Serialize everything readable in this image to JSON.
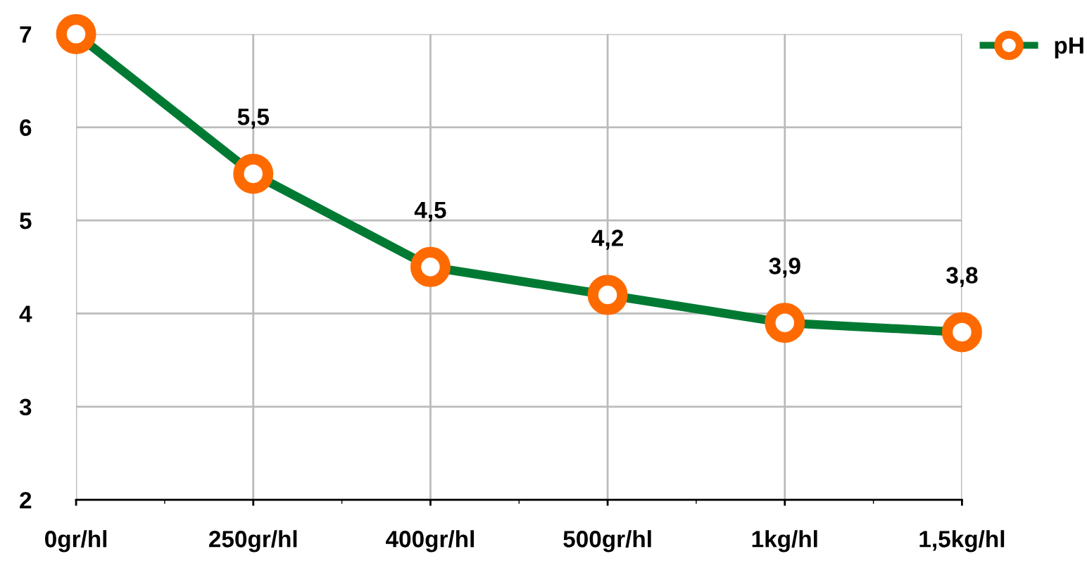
{
  "chart_data": {
    "type": "line",
    "categories": [
      "0gr/hl",
      "250gr/hl",
      "400gr/hl",
      "500gr/hl",
      "1kg/hl",
      "1,5kg/hl"
    ],
    "series": [
      {
        "name": "pH",
        "color": "#007a33",
        "colors": [
          "#ff6a00",
          "#ff6a00",
          "#ff6a00",
          "#ff6a00",
          "#ff6a00",
          "#ff6a00"
        ],
        "values": [
          7,
          5.5,
          4.5,
          4.2,
          3.9,
          3.8
        ],
        "value_labels": [
          null,
          "5,5",
          "4,5",
          "4,2",
          "3,9",
          "3,8"
        ]
      }
    ],
    "ylim": [
      2,
      7
    ],
    "yticks": [
      2,
      3,
      4,
      5,
      6,
      7
    ],
    "grid": true,
    "legend": "top right",
    "marker": "circle",
    "line_style": "solid"
  }
}
